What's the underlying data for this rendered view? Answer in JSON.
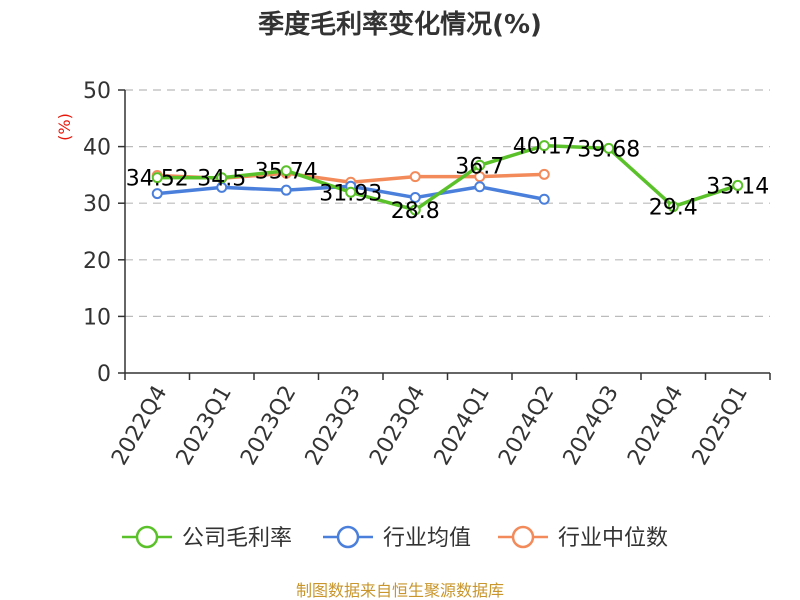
{
  "chart_data": {
    "type": "line",
    "title": "季度毛利率变化情况(%)",
    "ylabel": "(%)",
    "xlabel": "",
    "categories": [
      "2022Q4",
      "2023Q1",
      "2023Q2",
      "2023Q3",
      "2023Q4",
      "2024Q1",
      "2024Q2",
      "2024Q3",
      "2024Q4",
      "2025Q1"
    ],
    "ylim": [
      0,
      50
    ],
    "yticks": [
      0,
      10,
      20,
      30,
      40,
      50
    ],
    "grid": true,
    "legend_position": "bottom",
    "series": [
      {
        "name": "公司毛利率",
        "color": "#5bc12a",
        "values": [
          34.52,
          34.5,
          35.74,
          31.93,
          28.8,
          36.7,
          40.17,
          39.68,
          29.4,
          33.14
        ],
        "labels": [
          "34.52",
          "34.5",
          "35.74",
          "31.93",
          "28.8",
          "36.7",
          "40.17",
          "39.68",
          "29.4",
          "33.14"
        ]
      },
      {
        "name": "行业均值",
        "color": "#4a7fdc",
        "values": [
          31.7,
          32.8,
          32.3,
          33.0,
          31.0,
          32.9,
          30.7,
          null,
          null,
          null
        ]
      },
      {
        "name": "行业中位数",
        "color": "#f28a5a",
        "values": [
          34.9,
          34.4,
          35.3,
          33.7,
          34.7,
          34.7,
          35.1,
          null,
          null,
          null
        ]
      }
    ]
  },
  "source": "制图数据来自恒生聚源数据库"
}
